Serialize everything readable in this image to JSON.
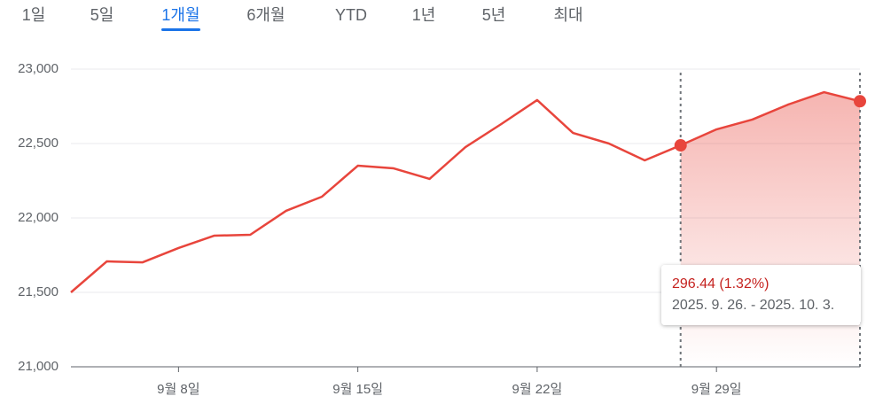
{
  "tabs": {
    "items": [
      "1일",
      "5일",
      "1개월",
      "6개월",
      "YTD",
      "1년",
      "5년",
      "최대"
    ],
    "active": 2
  },
  "chart_data": {
    "type": "line",
    "categories": [
      null,
      null,
      null,
      "9월 8일",
      null,
      null,
      null,
      null,
      "9월 15일",
      null,
      null,
      null,
      null,
      "9월 22일",
      null,
      null,
      null,
      null,
      "9월 29일",
      null,
      null,
      null,
      null
    ],
    "series": [
      {
        "color": "#e8453c",
        "values": [
          21500,
          21708,
          21702,
          21798,
          21881,
          21887,
          22048,
          22143,
          22351,
          22333,
          22262,
          22476,
          22631,
          22792,
          22571,
          22500,
          22387,
          22488,
          22595,
          22661,
          22762,
          22845,
          22784
        ]
      }
    ],
    "ylim": [
      21000,
      23000
    ],
    "yticks": [
      {
        "value": 21000,
        "label": "21,000"
      },
      {
        "value": 21500,
        "label": "21,500"
      },
      {
        "value": 22000,
        "label": "22,000"
      },
      {
        "value": 22500,
        "label": "22,500"
      },
      {
        "value": 23000,
        "label": "23,000"
      }
    ],
    "grid": true,
    "selection_range": [
      17,
      22
    ],
    "tooltip": {
      "change": "296.44 (1.32%)",
      "dates": "2025. 9. 26. - 2025. 10. 3."
    }
  }
}
